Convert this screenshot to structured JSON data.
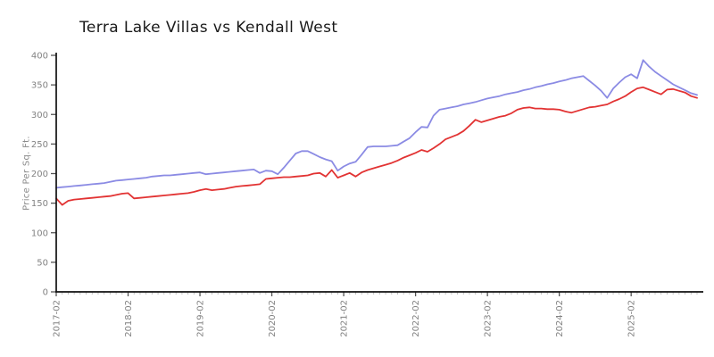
{
  "page": {
    "background": "#ffffff"
  },
  "chart_data": {
    "type": "line",
    "title": "Terra Lake Villas vs Kendall West",
    "xlabel": "",
    "ylabel": "Price Per Sq. Ft.",
    "x_start": "2017-02",
    "x_end": "2026-01",
    "x_interval": "monthly",
    "x_tick_labels": [
      "2017-02",
      "2018-02",
      "2019-02",
      "2020-02",
      "2021-02",
      "2022-02",
      "2023-02",
      "2024-02",
      "2025-02"
    ],
    "x_tick_indices": [
      0,
      12,
      24,
      36,
      48,
      60,
      72,
      84,
      96
    ],
    "y_ticks": [
      0,
      50,
      100,
      150,
      200,
      250,
      300,
      350,
      400
    ],
    "ylim": [
      0,
      400
    ],
    "grid": false,
    "legend": "none",
    "axis_color": "#111111",
    "major_tick_color": "#555555",
    "minor_tick_color": "#bcbcbc",
    "tick_label_color": "#828282",
    "series": [
      {
        "name": "Terra Lake Villas",
        "color": "#8b8be4",
        "values": [
          176,
          177,
          178,
          179,
          180,
          181,
          182,
          183,
          184,
          186,
          188,
          189,
          190,
          191,
          192,
          193,
          195,
          196,
          197,
          197,
          198,
          199,
          200,
          201,
          202,
          199,
          200,
          201,
          202,
          203,
          204,
          205,
          206,
          207,
          201,
          205,
          204,
          199,
          210,
          222,
          234,
          238,
          238,
          233,
          228,
          224,
          221,
          205,
          212,
          217,
          220,
          232,
          245,
          246,
          246,
          246,
          247,
          248,
          254,
          260,
          270,
          279,
          278,
          298,
          308,
          310,
          312,
          314,
          317,
          319,
          321,
          324,
          327,
          329,
          331,
          334,
          336,
          338,
          341,
          343,
          346,
          348,
          351,
          353,
          356,
          358,
          361,
          363,
          365,
          357,
          349,
          340,
          328,
          344,
          354,
          363,
          368,
          361,
          392,
          381,
          372,
          365,
          358,
          351,
          346,
          341,
          336,
          333
        ]
      },
      {
        "name": "Kendall West",
        "color": "#e23333",
        "values": [
          158,
          147,
          154,
          156,
          157,
          158,
          159,
          160,
          161,
          162,
          164,
          166,
          167,
          158,
          159,
          160,
          161,
          162,
          163,
          164,
          165,
          166,
          167,
          169,
          172,
          174,
          172,
          173,
          174,
          176,
          178,
          179,
          180,
          181,
          182,
          191,
          192,
          193,
          194,
          194,
          195,
          196,
          197,
          200,
          201,
          195,
          206,
          193,
          197,
          201,
          195,
          202,
          206,
          209,
          212,
          215,
          218,
          222,
          227,
          231,
          235,
          240,
          237,
          243,
          250,
          258,
          262,
          266,
          272,
          281,
          291,
          287,
          290,
          293,
          296,
          298,
          302,
          308,
          311,
          312,
          310,
          310,
          309,
          309,
          308,
          305,
          303,
          306,
          309,
          312,
          313,
          315,
          317,
          322,
          326,
          331,
          338,
          344,
          346,
          342,
          338,
          334,
          342,
          343,
          340,
          337,
          331,
          328
        ]
      }
    ]
  }
}
